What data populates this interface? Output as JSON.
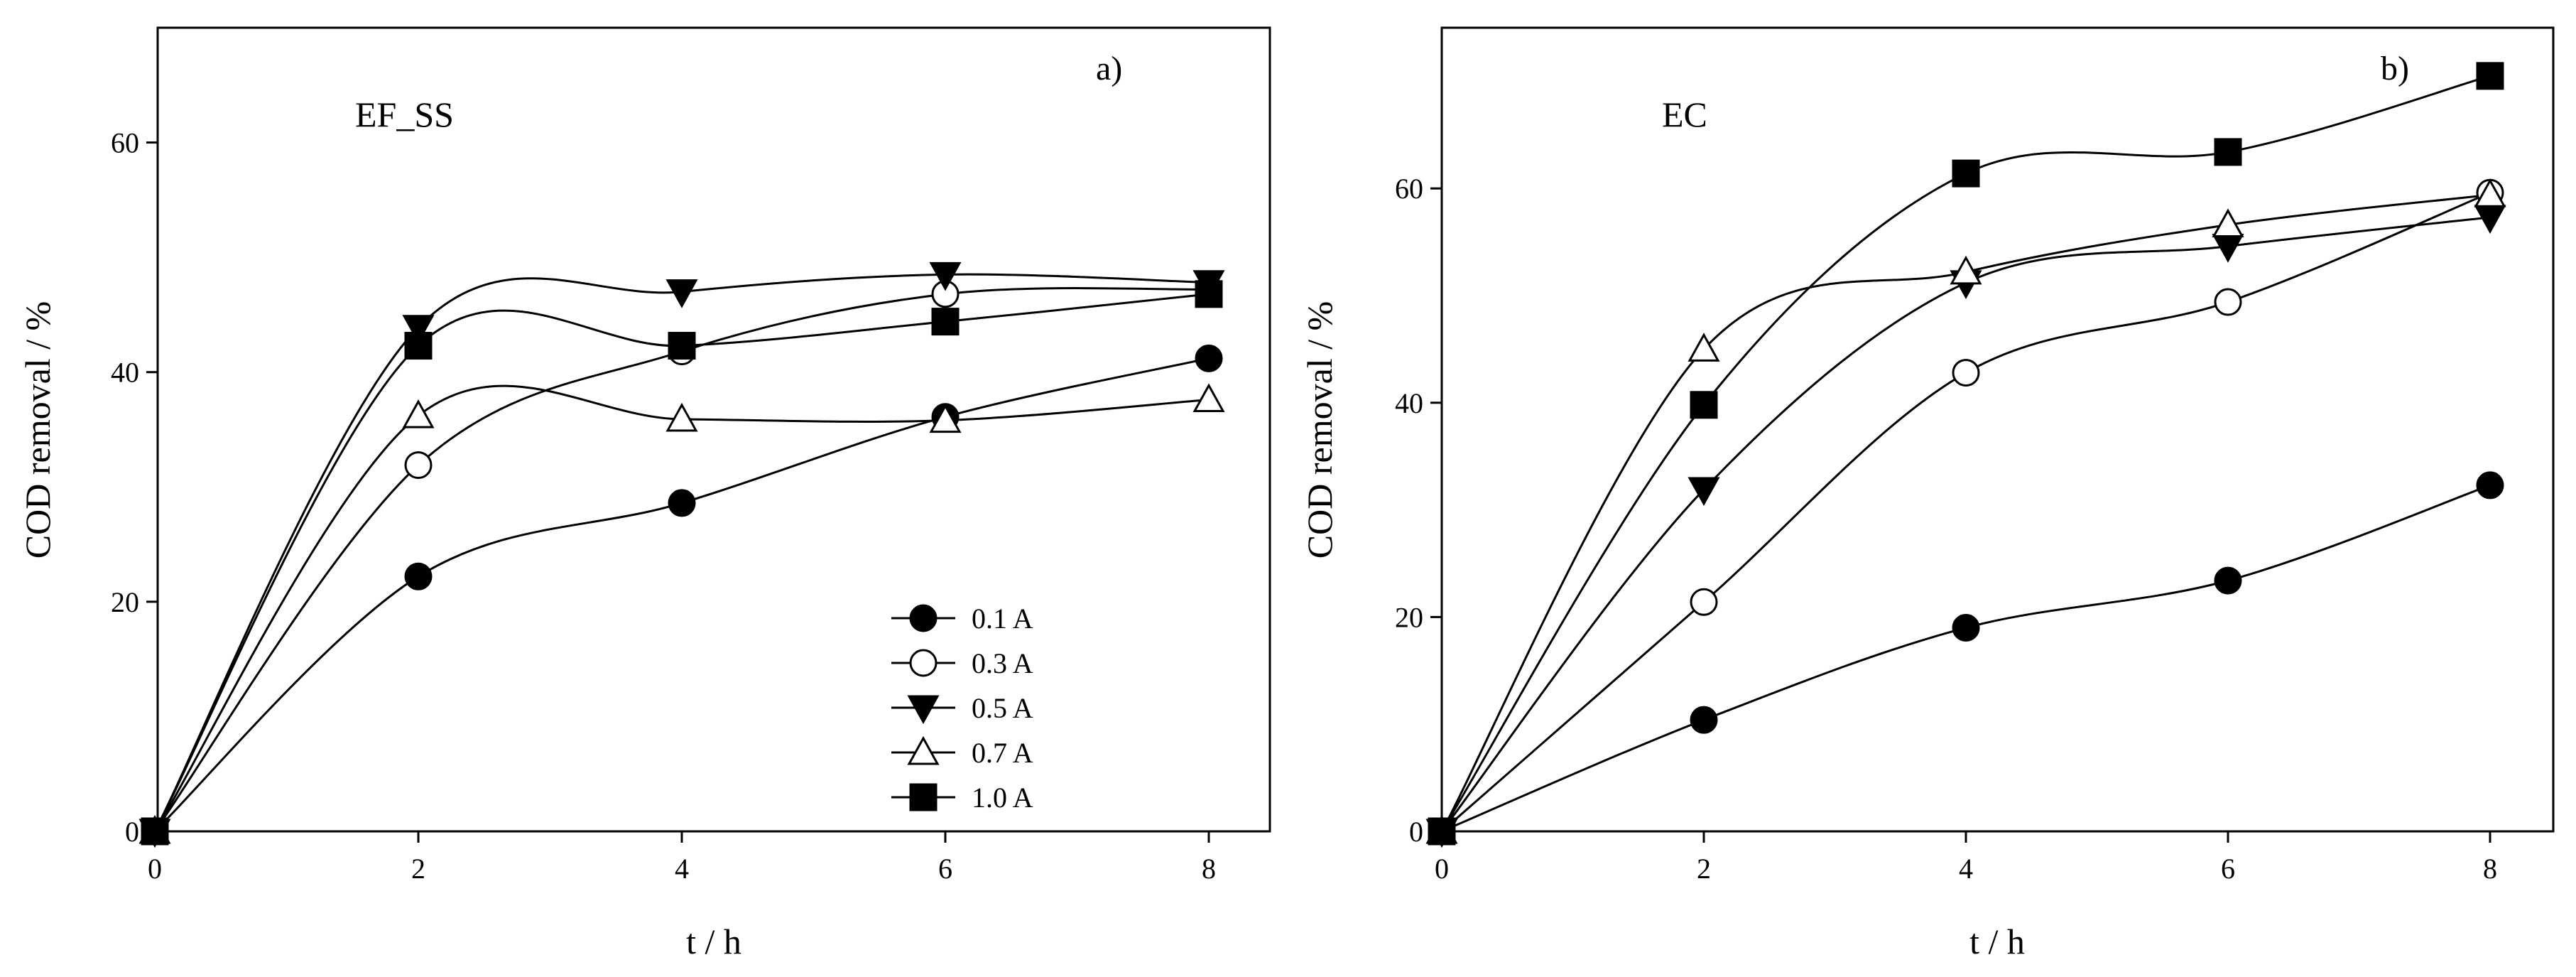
{
  "chart_data": [
    {
      "type": "line",
      "panel_label": "a)",
      "title": "EF_SS",
      "xlabel": "t / h",
      "ylabel": "COD removal / %",
      "xlim": [
        0,
        8.5
      ],
      "ylim": [
        0,
        70
      ],
      "xticks": [
        0,
        2,
        4,
        6,
        8
      ],
      "yticks": [
        0,
        20,
        40,
        60
      ],
      "grid": false,
      "legend_position": "bottom-right",
      "x": [
        0,
        2,
        4,
        6,
        8
      ],
      "series": [
        {
          "name": "0.1 A",
          "marker": "circle-filled",
          "values": [
            0,
            22.2,
            28.6,
            36.1,
            41.2
          ]
        },
        {
          "name": "0.3 A",
          "marker": "circle-open",
          "values": [
            0,
            31.9,
            41.8,
            46.8,
            47.2
          ]
        },
        {
          "name": "0.5 A",
          "marker": "triangle-down-filled",
          "values": [
            0,
            43.9,
            47.0,
            48.5,
            47.8
          ]
        },
        {
          "name": "0.7 A",
          "marker": "triangle-up-open",
          "values": [
            0,
            36.2,
            35.9,
            35.8,
            37.6
          ]
        },
        {
          "name": "1.0 A",
          "marker": "square-filled",
          "values": [
            0,
            42.3,
            42.3,
            44.4,
            46.8
          ]
        }
      ]
    },
    {
      "type": "line",
      "panel_label": "b)",
      "title": "EC",
      "xlabel": "t / h",
      "ylabel": "COD removal / %",
      "xlim": [
        0,
        8.5
      ],
      "ylim": [
        0,
        75
      ],
      "xticks": [
        0,
        2,
        4,
        6,
        8
      ],
      "yticks": [
        0,
        20,
        40,
        60
      ],
      "grid": false,
      "legend_position": "none",
      "x": [
        0,
        2,
        4,
        6,
        8
      ],
      "series": [
        {
          "name": "0.1 A",
          "marker": "circle-filled",
          "values": [
            0,
            10.4,
            19.0,
            23.4,
            32.3
          ]
        },
        {
          "name": "0.3 A",
          "marker": "circle-open",
          "values": [
            0,
            21.4,
            42.8,
            49.4,
            59.6
          ]
        },
        {
          "name": "0.5 A",
          "marker": "triangle-down-filled",
          "values": [
            0,
            31.9,
            51.2,
            54.6,
            57.3
          ]
        },
        {
          "name": "0.7 A",
          "marker": "triangle-up-open",
          "values": [
            0,
            45.0,
            52.2,
            56.6,
            59.4
          ]
        },
        {
          "name": "1.0 A",
          "marker": "square-filled",
          "values": [
            0,
            39.8,
            61.4,
            63.4,
            70.5
          ]
        }
      ]
    }
  ]
}
